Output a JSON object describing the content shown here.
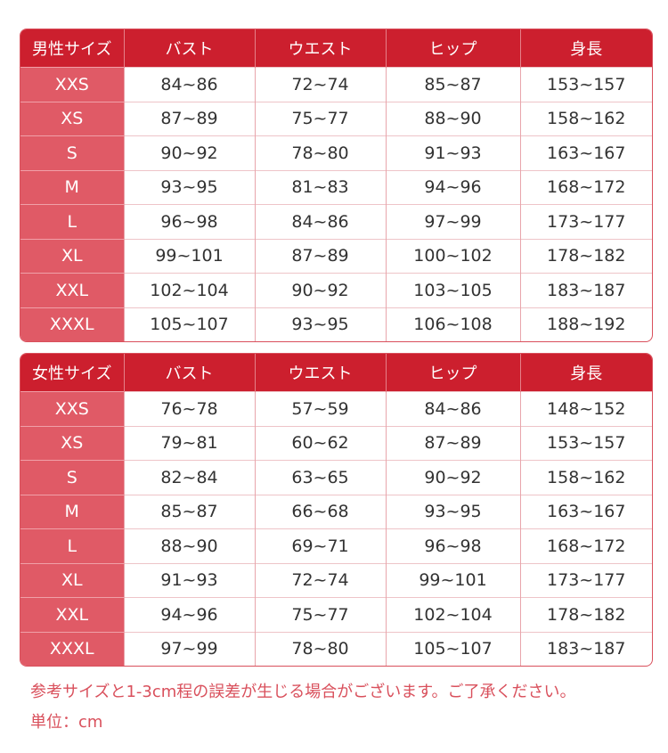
{
  "colors": {
    "header": "#cc1f2e",
    "size_column": "#e05a66",
    "note_text": "#d9505c"
  },
  "men": {
    "headers": [
      "男性サイズ",
      "バスト",
      "ウエスト",
      "ヒップ",
      "身長"
    ],
    "rows": [
      [
        "XXS",
        "84~86",
        "72~74",
        "85~87",
        "153~157"
      ],
      [
        "XS",
        "87~89",
        "75~77",
        "88~90",
        "158~162"
      ],
      [
        "S",
        "90~92",
        "78~80",
        "91~93",
        "163~167"
      ],
      [
        "M",
        "93~95",
        "81~83",
        "94~96",
        "168~172"
      ],
      [
        "L",
        "96~98",
        "84~86",
        "97~99",
        "173~177"
      ],
      [
        "XL",
        "99~101",
        "87~89",
        "100~102",
        "178~182"
      ],
      [
        "XXL",
        "102~104",
        "90~92",
        "103~105",
        "183~187"
      ],
      [
        "XXXL",
        "105~107",
        "93~95",
        "106~108",
        "188~192"
      ]
    ]
  },
  "women": {
    "headers": [
      "女性サイズ",
      "バスト",
      "ウエスト",
      "ヒップ",
      "身長"
    ],
    "rows": [
      [
        "XXS",
        "76~78",
        "57~59",
        "84~86",
        "148~152"
      ],
      [
        "XS",
        "79~81",
        "60~62",
        "87~89",
        "153~157"
      ],
      [
        "S",
        "82~84",
        "63~65",
        "90~92",
        "158~162"
      ],
      [
        "M",
        "85~87",
        "66~68",
        "93~95",
        "163~167"
      ],
      [
        "L",
        "88~90",
        "69~71",
        "96~98",
        "168~172"
      ],
      [
        "XL",
        "91~93",
        "72~74",
        "99~101",
        "173~177"
      ],
      [
        "XXL",
        "94~96",
        "75~77",
        "102~104",
        "178~182"
      ],
      [
        "XXXL",
        "97~99",
        "78~80",
        "105~107",
        "183~187"
      ]
    ]
  },
  "notes": {
    "disclaimer": "参考サイズと1-3cm程の誤差が生じる場合がございます。ご了承ください。",
    "unit": "単位：cm"
  }
}
